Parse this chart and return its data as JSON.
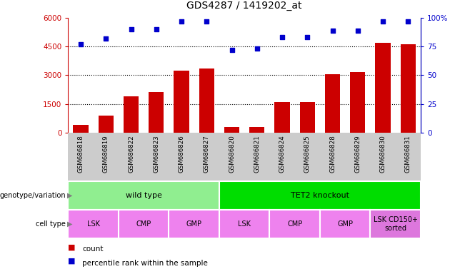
{
  "title": "GDS4287 / 1419202_at",
  "samples": [
    "GSM686818",
    "GSM686819",
    "GSM686822",
    "GSM686823",
    "GSM686826",
    "GSM686827",
    "GSM686820",
    "GSM686821",
    "GSM686824",
    "GSM686825",
    "GSM686828",
    "GSM686829",
    "GSM686830",
    "GSM686831"
  ],
  "counts": [
    400,
    900,
    1900,
    2100,
    3250,
    3350,
    300,
    270,
    1600,
    1600,
    3050,
    3150,
    4700,
    4600
  ],
  "percentiles": [
    77,
    82,
    90,
    90,
    97,
    97,
    72,
    73,
    83,
    83,
    89,
    89,
    97,
    97
  ],
  "bar_color": "#cc0000",
  "dot_color": "#0000cc",
  "ylim_left": [
    0,
    6000
  ],
  "ylim_right": [
    0,
    100
  ],
  "yticks_left": [
    0,
    1500,
    3000,
    4500,
    6000
  ],
  "yticks_right": [
    0,
    25,
    50,
    75,
    100
  ],
  "ytick_labels_left": [
    "0",
    "1500",
    "3000",
    "4500",
    "6000"
  ],
  "ytick_labels_right": [
    "0",
    "25",
    "50",
    "75",
    "100%"
  ],
  "grid_lines": [
    1500,
    3000,
    4500
  ],
  "genotype_groups": [
    {
      "label": "wild type",
      "start": 0,
      "end": 6,
      "color": "#90ee90"
    },
    {
      "label": "TET2 knockout",
      "start": 6,
      "end": 14,
      "color": "#00dd00"
    }
  ],
  "cell_type_groups": [
    {
      "label": "LSK",
      "start": 0,
      "end": 2,
      "color": "#ee82ee"
    },
    {
      "label": "CMP",
      "start": 2,
      "end": 4,
      "color": "#ee82ee"
    },
    {
      "label": "GMP",
      "start": 4,
      "end": 6,
      "color": "#ee82ee"
    },
    {
      "label": "LSK",
      "start": 6,
      "end": 8,
      "color": "#ee82ee"
    },
    {
      "label": "CMP",
      "start": 8,
      "end": 10,
      "color": "#ee82ee"
    },
    {
      "label": "GMP",
      "start": 10,
      "end": 12,
      "color": "#ee82ee"
    },
    {
      "label": "LSK CD150+\nsorted",
      "start": 12,
      "end": 14,
      "color": "#dd77dd"
    }
  ],
  "sample_bg_color": "#cccccc",
  "left_axis_color": "#cc0000",
  "right_axis_color": "#0000cc",
  "bg_color": "#ffffff"
}
